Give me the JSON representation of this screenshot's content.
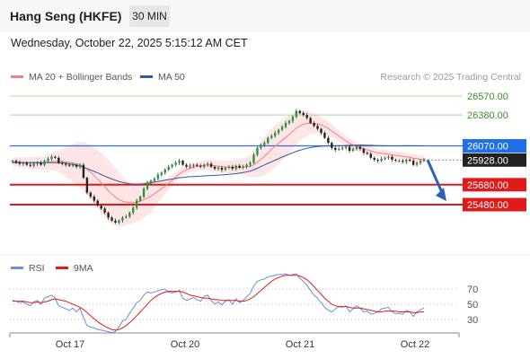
{
  "header": {
    "title": "Hang Seng (HKFE)",
    "interval": "30 MIN"
  },
  "datetime": "Wednesday, October 22, 2025 5:15:12 AM CET",
  "legend": {
    "items": [
      {
        "label": "MA 20 + Bollinger Bands",
        "color": "#f08080"
      },
      {
        "label": "MA 50",
        "color": "#2e5d9e"
      }
    ],
    "credit": "Research © 2025 Trading Central"
  },
  "chart_data": {
    "type": "candlestick",
    "x_ticks": [
      "Oct 17",
      "Oct 20",
      "Oct 21",
      "Oct 22"
    ],
    "price_levels": [
      {
        "value": 26570.0,
        "label": "26570.00",
        "kind": "green"
      },
      {
        "value": 26380.0,
        "label": "26380.00",
        "kind": "green"
      },
      {
        "value": 26070.0,
        "label": "26070.00",
        "kind": "blue"
      },
      {
        "value": 25928.0,
        "label": "25928.00",
        "kind": "last"
      },
      {
        "value": 25680.0,
        "label": "25680.00",
        "kind": "red"
      },
      {
        "value": 25480.0,
        "label": "25480.00",
        "kind": "red"
      }
    ],
    "close": [
      25920,
      25905,
      25890,
      25900,
      25880,
      25870,
      25890,
      25900,
      25880,
      25920,
      25940,
      25960,
      25950,
      25900,
      25890,
      25880,
      25870,
      25880,
      25860,
      25880,
      25750,
      25600,
      25560,
      25520,
      25470,
      25440,
      25400,
      25350,
      25320,
      25300,
      25320,
      25350,
      25360,
      25400,
      25450,
      25520,
      25560,
      25640,
      25700,
      25720,
      25740,
      25780,
      25800,
      25830,
      25860,
      25880,
      25900,
      25920,
      25880,
      25860,
      25870,
      25880,
      25870,
      25860,
      25880,
      25890,
      25860,
      25840,
      25850,
      25830,
      25850,
      25860,
      25840,
      25870,
      25850,
      25860,
      25880,
      25900,
      25980,
      26050,
      26080,
      26100,
      26150,
      26170,
      26200,
      26230,
      26260,
      26300,
      26320,
      26360,
      26420,
      26400,
      26380,
      26350,
      26300,
      26270,
      26240,
      26200,
      26150,
      26100,
      26050,
      26030,
      26040,
      26050,
      26060,
      26020,
      26040,
      26060,
      26040,
      26000,
      25990,
      25950,
      25930,
      25920,
      25940,
      25950,
      25960,
      25930,
      25920,
      25920,
      25910,
      25930,
      25920,
      25880,
      25900,
      25920,
      25928
    ],
    "ma20": [
      25910,
      25910,
      25905,
      25903,
      25900,
      25898,
      25897,
      25898,
      25898,
      25900,
      25905,
      25910,
      25915,
      25914,
      25912,
      25908,
      25904,
      25898,
      25890,
      25880,
      25860,
      25835,
      25805,
      25770,
      25735,
      25700,
      25660,
      25620,
      25585,
      25555,
      25530,
      25515,
      25505,
      25500,
      25500,
      25505,
      25515,
      25530,
      25545,
      25565,
      25590,
      25615,
      25640,
      25665,
      25695,
      25725,
      25755,
      25790,
      25810,
      25830,
      25845,
      25855,
      25865,
      25870,
      25875,
      25878,
      25875,
      25870,
      25865,
      25860,
      25858,
      25856,
      25855,
      25856,
      25856,
      25857,
      25860,
      25865,
      25880,
      25905,
      25935,
      25965,
      26000,
      26035,
      26065,
      26095,
      26125,
      26155,
      26185,
      26215,
      26250,
      26270,
      26285,
      26295,
      26298,
      26295,
      26290,
      26280,
      26265,
      26245,
      26220,
      26195,
      26170,
      26145,
      26120,
      26095,
      26075,
      26060,
      26050,
      26040,
      26030,
      26020,
      26010,
      26000,
      25995,
      25990,
      25985,
      25980,
      25975,
      25970,
      25965,
      25960,
      25955,
      25945,
      25940,
      25935,
      25933
    ],
    "ma50": [
      25900,
      25900,
      25901,
      25902,
      25902,
      25903,
      25903,
      25903,
      25902,
      25902,
      25902,
      25902,
      25902,
      25900,
      25898,
      25895,
      25890,
      25884,
      25876,
      25866,
      25855,
      25842,
      25828,
      25813,
      25798,
      25782,
      25766,
      25751,
      25737,
      25724,
      25713,
      25703,
      25696,
      25690,
      25686,
      25685,
      25686,
      25689,
      25694,
      25700,
      25706,
      25712,
      25718,
      25725,
      25731,
      25737,
      25743,
      25749,
      25753,
      25757,
      25760,
      25762,
      25764,
      25766,
      25768,
      25770,
      25772,
      25774,
      25776,
      25778,
      25781,
      25784,
      25787,
      25791,
      25796,
      25802,
      25809,
      25817,
      25830,
      25845,
      25862,
      25878,
      25894,
      25910,
      25926,
      25942,
      25957,
      25972,
      25986,
      26000,
      26015,
      26026,
      26036,
      26045,
      26052,
      26058,
      26063,
      26066,
      26068,
      26069,
      26070,
      26071,
      26072,
      26073,
      26074,
      26075,
      26076,
      26077,
      26077,
      26077,
      26076,
      26075,
      26074,
      26073,
      26072,
      26071,
      26070,
      26070,
      26070,
      26070,
      26071,
      26071,
      26071,
      26071,
      26070,
      26070,
      26070
    ],
    "bb_width": [
      40,
      45,
      50,
      55,
      55,
      58,
      60,
      62,
      64,
      66,
      75,
      85,
      95,
      110,
      130,
      150,
      170,
      190,
      210,
      230,
      250,
      260,
      270,
      280,
      290,
      300,
      305,
      310,
      300,
      290,
      270,
      250,
      230,
      215,
      205,
      200,
      190,
      180,
      170,
      160,
      140,
      120,
      100,
      80,
      60,
      50,
      45,
      42,
      40,
      40,
      40,
      40,
      42,
      45,
      50,
      55,
      58,
      60,
      60,
      62,
      63,
      65,
      68,
      72,
      78,
      85,
      95,
      110,
      130,
      150,
      170,
      190,
      200,
      205,
      210,
      208,
      205,
      200,
      195,
      185,
      170,
      155,
      140,
      125,
      110,
      100,
      90,
      80,
      75,
      70,
      65,
      60,
      55,
      52,
      50,
      48,
      46,
      45,
      44,
      43,
      42,
      42,
      41,
      40,
      40,
      40,
      40,
      40,
      40,
      40,
      40,
      40,
      40,
      40,
      40,
      40,
      40
    ],
    "indicator": {
      "legend": [
        {
          "label": "RSI",
          "color": "#6a8fd8"
        },
        {
          "label": "9MA",
          "color": "#e01b1b"
        }
      ],
      "ticks": [
        70,
        50,
        30
      ],
      "rsi": [
        55,
        54,
        52,
        53,
        50,
        48,
        53,
        55,
        50,
        58,
        60,
        62,
        58,
        48,
        46,
        44,
        42,
        45,
        40,
        45,
        32,
        22,
        20,
        19,
        17,
        16,
        15,
        14,
        13,
        14,
        20,
        28,
        30,
        38,
        45,
        52,
        55,
        62,
        66,
        65,
        66,
        68,
        69,
        70,
        66,
        65,
        66,
        68,
        58,
        55,
        57,
        59,
        56,
        54,
        60,
        62,
        55,
        50,
        53,
        49,
        54,
        56,
        50,
        57,
        52,
        55,
        60,
        64,
        74,
        80,
        82,
        83,
        86,
        87,
        88,
        89,
        89,
        90,
        88,
        89,
        90,
        84,
        80,
        75,
        68,
        62,
        58,
        52,
        46,
        42,
        40,
        44,
        47,
        46,
        48,
        40,
        44,
        48,
        45,
        40,
        41,
        37,
        38,
        40,
        44,
        45,
        46,
        40,
        38,
        38,
        37,
        42,
        40,
        34,
        40,
        43,
        45
      ],
      "ma9": [
        54,
        54,
        54,
        54,
        53,
        52,
        52,
        53,
        52,
        53,
        54,
        56,
        57,
        56,
        55,
        54,
        52,
        50,
        48,
        46,
        43,
        39,
        35,
        31,
        27,
        24,
        21,
        19,
        17,
        16,
        17,
        19,
        22,
        26,
        30,
        35,
        40,
        45,
        50,
        55,
        59,
        62,
        64,
        66,
        67,
        67,
        67,
        67,
        66,
        64,
        62,
        61,
        60,
        59,
        58,
        58,
        57,
        56,
        56,
        55,
        55,
        55,
        55,
        55,
        54,
        54,
        55,
        57,
        60,
        64,
        68,
        72,
        76,
        80,
        83,
        85,
        87,
        88,
        88,
        88,
        88,
        87,
        85,
        82,
        78,
        73,
        68,
        63,
        58,
        54,
        50,
        48,
        47,
        47,
        47,
        46,
        45,
        45,
        45,
        44,
        43,
        42,
        41,
        40,
        40,
        41,
        41,
        41,
        41,
        40,
        40,
        40,
        40,
        39,
        39,
        40,
        40
      ]
    }
  }
}
